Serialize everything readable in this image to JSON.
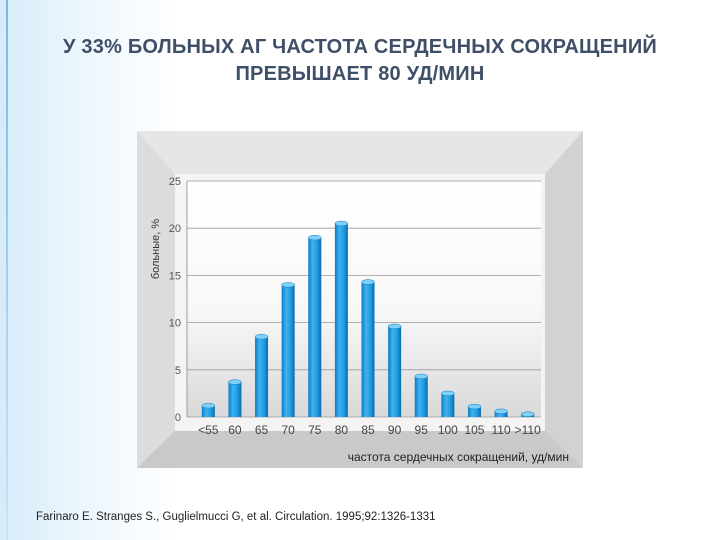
{
  "title": {
    "line1": "У 33% БОЛЬНЫХ АГ ЧАСТОТА СЕРДЕЧНЫХ СОКРАЩЕНИЙ",
    "line2": "ПРЕВЫШАЕТ 80 УД/МИН"
  },
  "citation": "Farinaro E. Stranges S., Guglielmucci G, et al. Circulation. 1995;92:1326-1331",
  "colors": {
    "bar": "#1e9be0",
    "bar_top": "#7fd0f7",
    "title": "#3f4f67"
  },
  "chart_data": {
    "type": "bar",
    "title": "",
    "xlabel": "частота сердечных сокращений, уд/мин",
    "ylabel": "больные, %",
    "categories": [
      "<55",
      "60",
      "65",
      "70",
      "75",
      "80",
      "85",
      "90",
      "95",
      "100",
      "105",
      "110",
      ">110"
    ],
    "values": [
      1.2,
      3.7,
      8.5,
      14,
      19,
      20.5,
      14.3,
      9.6,
      4.3,
      2.5,
      1.1,
      0.6,
      0.3
    ],
    "yticks": [
      0,
      5,
      10,
      15,
      20,
      25
    ],
    "ylim": [
      0,
      25
    ],
    "grid": true
  }
}
